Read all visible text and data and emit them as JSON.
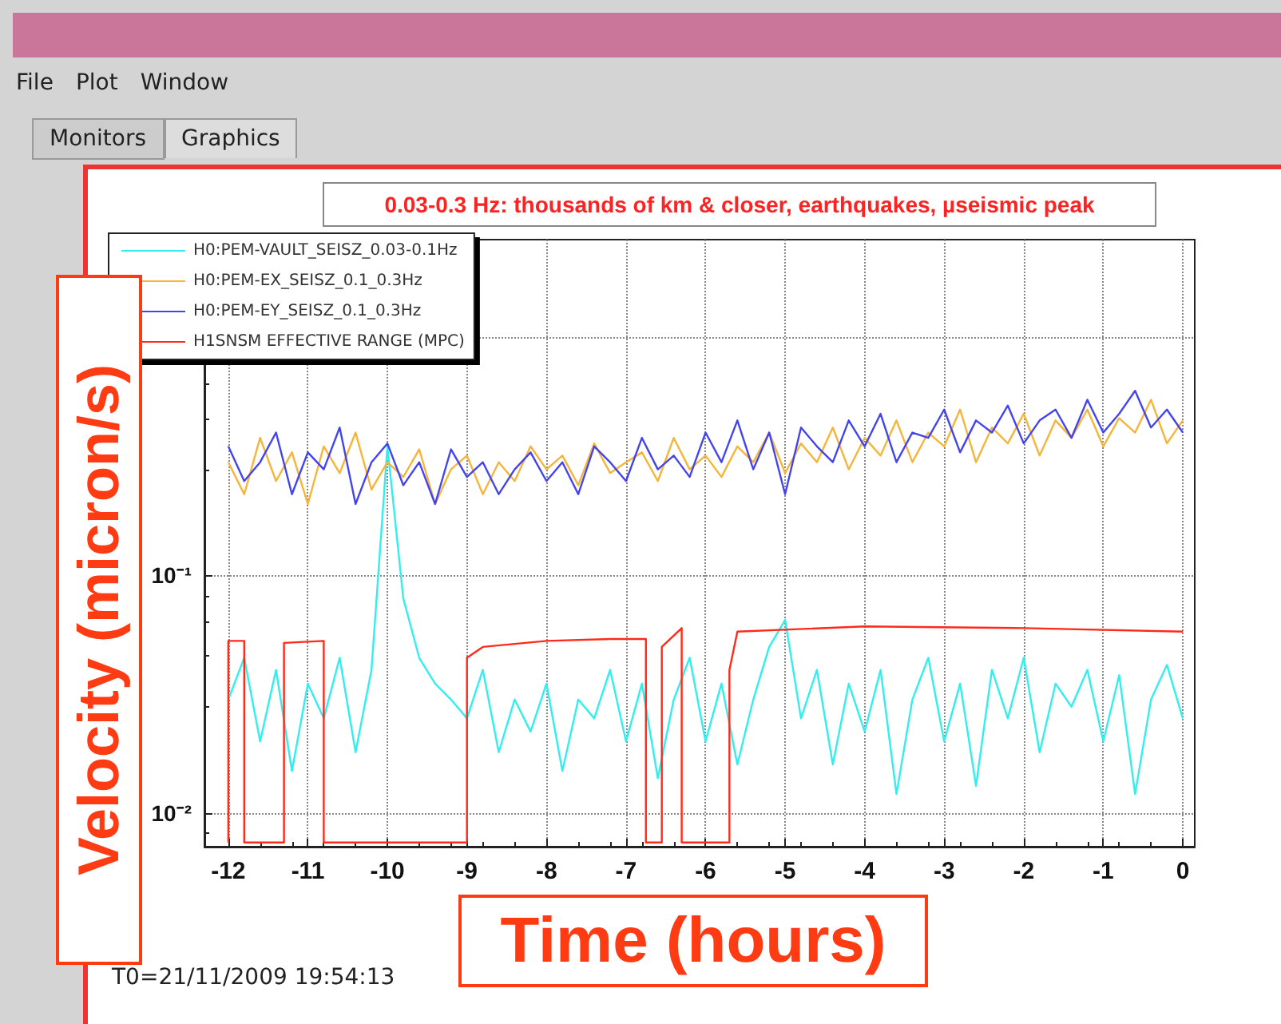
{
  "chart_data": {
    "type": "line",
    "title": "0.03-0.3 Hz: thousands of km & closer, earthquakes, µseismic peak",
    "xlabel": "Time (hours)",
    "ylabel": "Velocity (micron/s)",
    "annotations": [
      "File",
      "Plot",
      "Window",
      "Monitors",
      "Graphics",
      "T0=21/11/2009 19:54:13"
    ],
    "x": [
      -12,
      -11.8,
      -11.6,
      -11.4,
      -11.2,
      -11,
      -10.8,
      -10.6,
      -10.4,
      -10.2,
      -10,
      -9.8,
      -9.6,
      -9.4,
      -9.2,
      -9,
      -8.8,
      -8.6,
      -8.4,
      -8.2,
      -8,
      -7.8,
      -7.6,
      -7.4,
      -7.2,
      -7,
      -6.8,
      -6.6,
      -6.4,
      -6.2,
      -6,
      -5.8,
      -5.6,
      -5.4,
      -5.2,
      -5,
      -4.8,
      -4.6,
      -4.4,
      -4.2,
      -4,
      -3.8,
      -3.6,
      -3.4,
      -3.2,
      -3,
      -2.8,
      -2.6,
      -2.4,
      -2.2,
      -2,
      -1.8,
      -1.6,
      -1.4,
      -1.2,
      -1,
      -0.8,
      -0.6,
      -0.4,
      -0.2,
      0
    ],
    "series": [
      {
        "name": "H0:PEM-VAULT_SEISZ_0.03-0.1Hz",
        "color": "#33eeee",
        "values": [
          0.03,
          0.045,
          0.02,
          0.04,
          0.015,
          0.035,
          0.025,
          0.045,
          0.018,
          0.04,
          0.35,
          0.08,
          0.045,
          0.035,
          0.03,
          0.025,
          0.04,
          0.018,
          0.03,
          0.022,
          0.035,
          0.015,
          0.03,
          0.025,
          0.04,
          0.02,
          0.035,
          0.014,
          0.03,
          0.045,
          0.02,
          0.035,
          0.016,
          0.03,
          0.05,
          0.065,
          0.025,
          0.04,
          0.016,
          0.035,
          0.022,
          0.04,
          0.012,
          0.03,
          0.045,
          0.02,
          0.035,
          0.013,
          0.04,
          0.025,
          0.045,
          0.018,
          0.035,
          0.028,
          0.04,
          0.02,
          0.038,
          0.012,
          0.03,
          0.042,
          0.025
        ]
      },
      {
        "name": "H0:PEM-EX_SEISZ_0.1_0.3Hz",
        "color": "#f5b43a",
        "values": [
          0.3,
          0.22,
          0.38,
          0.25,
          0.33,
          0.2,
          0.35,
          0.27,
          0.4,
          0.23,
          0.3,
          0.26,
          0.34,
          0.2,
          0.28,
          0.32,
          0.22,
          0.3,
          0.25,
          0.35,
          0.28,
          0.32,
          0.24,
          0.36,
          0.27,
          0.3,
          0.33,
          0.25,
          0.38,
          0.28,
          0.32,
          0.26,
          0.35,
          0.3,
          0.4,
          0.27,
          0.36,
          0.3,
          0.42,
          0.28,
          0.38,
          0.32,
          0.45,
          0.3,
          0.4,
          0.35,
          0.5,
          0.3,
          0.42,
          0.36,
          0.48,
          0.32,
          0.45,
          0.38,
          0.5,
          0.35,
          0.46,
          0.4,
          0.55,
          0.36,
          0.45
        ]
      },
      {
        "name": "H0:PEM-EY_SEISZ_0.1_0.3Hz",
        "color": "#4444ee",
        "values": [
          0.35,
          0.25,
          0.3,
          0.4,
          0.22,
          0.33,
          0.28,
          0.42,
          0.2,
          0.3,
          0.36,
          0.24,
          0.3,
          0.2,
          0.34,
          0.26,
          0.3,
          0.22,
          0.28,
          0.33,
          0.25,
          0.3,
          0.22,
          0.35,
          0.3,
          0.25,
          0.38,
          0.28,
          0.32,
          0.26,
          0.4,
          0.3,
          0.45,
          0.28,
          0.4,
          0.22,
          0.42,
          0.35,
          0.3,
          0.45,
          0.35,
          0.48,
          0.3,
          0.4,
          0.38,
          0.5,
          0.33,
          0.45,
          0.4,
          0.52,
          0.36,
          0.45,
          0.5,
          0.38,
          0.55,
          0.4,
          0.48,
          0.6,
          0.42,
          0.5,
          0.4
        ]
      },
      {
        "name": "H1SNSM EFFECTIVE RANGE (MPC)",
        "color": "#ff2a1a",
        "x": [
          -12,
          -12,
          -11.8,
          -11.8,
          -11.3,
          -11.3,
          -10.8,
          -10.8,
          -9,
          -9,
          -8.8,
          -8,
          -7.2,
          -6.75,
          -6.75,
          -6.55,
          -6.55,
          -6.3,
          -6.3,
          -5.7,
          -5.7,
          -5.6,
          -4,
          -2,
          0
        ],
        "values": [
          0.0075,
          0.053,
          0.053,
          0.0075,
          0.0075,
          0.052,
          0.053,
          0.0075,
          0.0075,
          0.045,
          0.05,
          0.053,
          0.054,
          0.054,
          0.0075,
          0.0075,
          0.05,
          0.06,
          0.0075,
          0.0075,
          0.04,
          0.058,
          0.061,
          0.06,
          0.058
        ]
      }
    ],
    "log": "y",
    "xlim": [
      -12.3,
      0.15
    ],
    "xticks": [
      -12,
      -11,
      -10,
      -9,
      -8,
      -7,
      -6,
      -5,
      -4,
      -3,
      -2,
      -1,
      0
    ],
    "ylim": [
      0.0072,
      2.6
    ],
    "yticks": [
      {
        "value": 0.01,
        "label": "10⁻²"
      },
      {
        "value": 0.1,
        "label": "10⁻¹"
      },
      {
        "value": 1,
        "label": null
      }
    ],
    "grid": true,
    "legend": "top left",
    "marker": "none",
    "line_style": "solid"
  }
}
